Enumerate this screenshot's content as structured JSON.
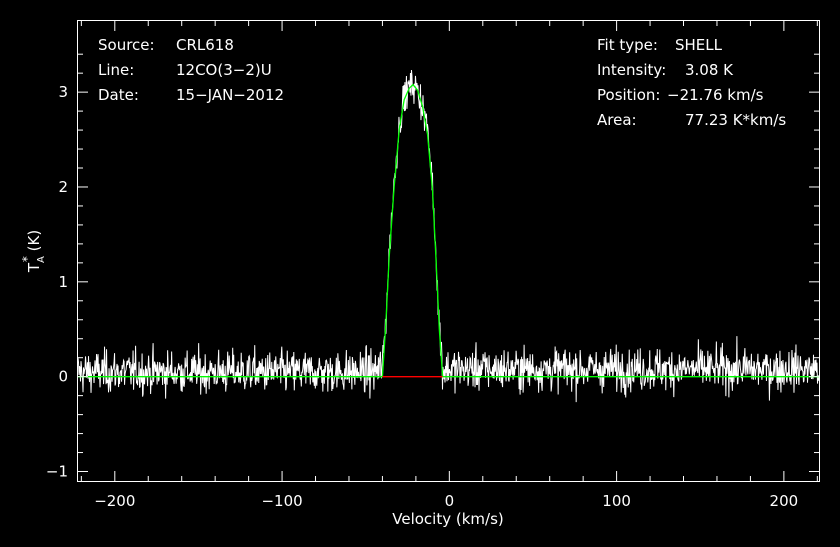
{
  "chart_data": {
    "type": "line",
    "title": "",
    "xlabel": "Velocity (km/s)",
    "ylabel": "T",
    "ylabel_sub": "A",
    "ylabel_sup": "*",
    "ylabel_unit": " (K)",
    "xlim": [
      -222,
      221
    ],
    "ylim": [
      -1.1,
      3.75
    ],
    "xticks": [
      -200,
      -100,
      0,
      100,
      200
    ],
    "xtick_labels": [
      "−200",
      "−100",
      "0",
      "100",
      "200"
    ],
    "yticks": [
      -1,
      0,
      1,
      2,
      3
    ],
    "ytick_labels": [
      "−1",
      "0",
      "1",
      "2",
      "3"
    ],
    "grid": false,
    "info_left": {
      "source_label": "Source:",
      "source_value": "CRL618",
      "line_label": "Line:",
      "line_value": "12CO(3−2)U",
      "date_label": "Date:",
      "date_value": "15−JAN−2012"
    },
    "info_right": {
      "fit_label": "Fit type:",
      "fit_value": "SHELL",
      "intensity_label": "Intensity:",
      "intensity_value": "3.08 K",
      "position_label": "Position:",
      "position_value": "−21.76 km/s",
      "area_label": "Area:",
      "area_value": "77.23 K*km/s"
    },
    "spectrum_envelope": {
      "x": [
        -222,
        -200,
        -180,
        -160,
        -140,
        -120,
        -100,
        -80,
        -60,
        -50,
        -45,
        -40,
        -38,
        -36,
        -33,
        -30,
        -27,
        -24,
        -21.76,
        -19,
        -16,
        -13,
        -10,
        -8,
        -6,
        -4,
        0,
        20,
        40,
        60,
        80,
        100,
        120,
        140,
        160,
        180,
        200,
        221
      ],
      "y": [
        0.05,
        0.05,
        0.05,
        0.05,
        0.05,
        0.05,
        0.05,
        0.05,
        0.05,
        0.05,
        0.05,
        0.1,
        0.6,
        1.3,
        2.05,
        2.65,
        2.95,
        3.05,
        3.08,
        3.02,
        2.85,
        2.6,
        2.0,
        1.3,
        0.55,
        0.08,
        0.08,
        0.08,
        0.08,
        0.08,
        0.08,
        0.08,
        0.08,
        0.08,
        0.08,
        0.08,
        0.08,
        0.08
      ]
    },
    "noise_rms": 0.2,
    "series": [
      {
        "color": "#00ff00",
        "x": [
          -222,
          -40,
          -38,
          -36,
          -33,
          -30,
          -27,
          -24,
          -21.76,
          -19,
          -16,
          -13,
          -10,
          -8,
          -6,
          -4,
          221
        ],
        "y": [
          0,
          0,
          0.55,
          1.25,
          2.0,
          2.6,
          2.92,
          3.04,
          3.08,
          3.02,
          2.85,
          2.55,
          1.95,
          1.25,
          0.5,
          0,
          0
        ]
      },
      {
        "color": "#ff0000",
        "x": [
          -40,
          -4
        ],
        "y": [
          0,
          0
        ]
      }
    ],
    "colors": {
      "spectrum": "#ffffff",
      "fit": "#00ff00",
      "baseline_window": "#ff0000",
      "background": "#000000",
      "axes": "#ffffff"
    }
  }
}
